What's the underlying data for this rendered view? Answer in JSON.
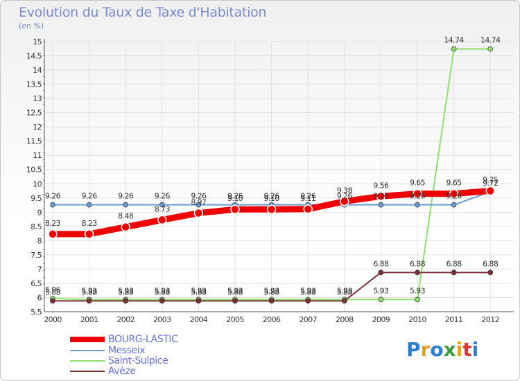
{
  "title": "Evolution du Taux de Taxe d'Habitation",
  "subtitle": "(en %)",
  "logo": {
    "text": [
      "P",
      "r",
      "o",
      "x",
      "i",
      "t",
      "i"
    ],
    "colors": [
      "#2a7fd4",
      "#e8a020",
      "#2a7fd4",
      "#3aa03a",
      "#e8a020",
      "#d43a3a",
      "#2a7fd4"
    ]
  },
  "chart_data": {
    "type": "line",
    "title": "Evolution du Taux de Taxe d'Habitation",
    "ylabel": "(en %)",
    "xlabel": "",
    "ylim": [
      5.5,
      15
    ],
    "yticks": [
      "5.5",
      "6",
      "6.5",
      "7",
      "7.5",
      "8",
      "8.5",
      "9",
      "9.5",
      "10",
      "10.5",
      "11",
      "11.5",
      "12",
      "12.5",
      "13",
      "13.5",
      "14",
      "14.5",
      "15"
    ],
    "categories": [
      "2000",
      "2001",
      "2002",
      "2003",
      "2004",
      "2005",
      "2006",
      "2007",
      "2008",
      "2009",
      "2010",
      "2011",
      "2012"
    ],
    "series": [
      {
        "name": "BOURG-LASTIC",
        "color": "#ee0000",
        "width": 9,
        "values": [
          8.23,
          8.23,
          8.48,
          8.73,
          8.97,
          9.1,
          9.1,
          9.11,
          9.38,
          9.56,
          9.65,
          9.65,
          9.75
        ],
        "labels": [
          "8.23",
          "8.23",
          "8.48",
          "8.73",
          "8.97",
          "9.10",
          "9.10",
          "9.11",
          "9.38",
          "9.56",
          "9.65",
          "9.65",
          "9.75"
        ]
      },
      {
        "name": "Messeix",
        "color": "#6c9bd2",
        "width": 2,
        "values": [
          9.26,
          9.26,
          9.26,
          9.26,
          9.26,
          9.26,
          9.26,
          9.26,
          9.26,
          9.26,
          9.26,
          9.26,
          9.72
        ],
        "labels": [
          "9.26",
          "9.26",
          "9.26",
          "9.26",
          "9.26",
          "9.26",
          "9.26",
          "9.26",
          "9.26",
          "9.26",
          "9.26",
          "9.26",
          "9.72"
        ]
      },
      {
        "name": "Saint-Sulpice",
        "color": "#90e070",
        "width": 2,
        "values": [
          5.96,
          5.93,
          5.93,
          5.93,
          5.93,
          5.93,
          5.93,
          5.93,
          5.93,
          5.93,
          5.93,
          14.74,
          14.74
        ],
        "labels": [
          "5.96",
          "5.93",
          "5.93",
          "5.93",
          "5.93",
          "5.93",
          "5.93",
          "5.93",
          "5.93",
          "5.93",
          "5.93",
          "14.74",
          "14.74"
        ]
      },
      {
        "name": "Avèze",
        "color": "#7a3035",
        "width": 2,
        "values": [
          5.88,
          5.88,
          5.88,
          5.88,
          5.88,
          5.88,
          5.88,
          5.88,
          5.88,
          6.88,
          6.88,
          6.88,
          6.88
        ],
        "labels": [
          "5.88",
          "5.88",
          "5.88",
          "5.88",
          "5.88",
          "5.88",
          "5.88",
          "5.88",
          "5.88",
          "6.88",
          "6.88",
          "6.88",
          "6.88"
        ]
      }
    ]
  }
}
